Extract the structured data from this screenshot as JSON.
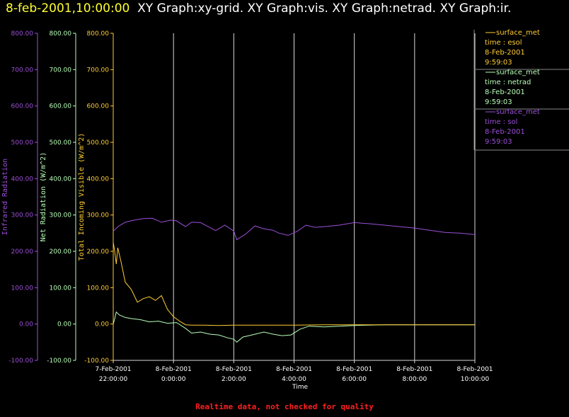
{
  "header": {
    "date_time": "8-feb-2001,10:00:00",
    "graphs": "XY Graph:xy-grid.  XY Graph:vis.  XY Graph:netrad.  XY Graph:ir."
  },
  "footer": {
    "notice": "Realtime data, not checked for quality"
  },
  "colors": {
    "background": "#000000",
    "vis": "#ffcc33",
    "netrad": "#b8ffb8",
    "ir": "#9b4fd8",
    "grid": "#d8d8d8",
    "notice": "#ff2020"
  },
  "chart_data": {
    "type": "line",
    "xlabel": "Time",
    "x_ticks": [
      {
        "line1": "7-Feb-2001",
        "line2": "22:00:00",
        "hour": 22
      },
      {
        "line1": "8-Feb-2001",
        "line2": "0:00:00",
        "hour": 24
      },
      {
        "line1": "8-Feb-2001",
        "line2": "2:00:00",
        "hour": 26
      },
      {
        "line1": "8-Feb-2001",
        "line2": "4:00:00",
        "hour": 28
      },
      {
        "line1": "8-Feb-2001",
        "line2": "6:00:00",
        "hour": 30
      },
      {
        "line1": "8-Feb-2001",
        "line2": "8:00:00",
        "hour": 32
      },
      {
        "line1": "8-Feb-2001",
        "line2": "10:00:00",
        "hour": 34
      }
    ],
    "xlim": [
      22,
      34
    ],
    "ylim": [
      -100,
      800
    ],
    "y_ticks": [
      800,
      700,
      600,
      500,
      400,
      300,
      200,
      100,
      0,
      -100
    ],
    "y_tick_labels": [
      "800.00",
      "700.00",
      "600.00",
      "500.00",
      "400.00",
      "300.00",
      "200.00",
      "100.00",
      "0.00",
      "-100.00"
    ],
    "axes": [
      {
        "id": "ir",
        "label": "Infrared Radiation"
      },
      {
        "id": "netrad",
        "label": "Net Radiation (W/m^2)"
      },
      {
        "id": "vis",
        "label": "Total Incoming Visible (W/m^2)"
      }
    ],
    "legend": [
      {
        "series": "vis",
        "name": "surface_met",
        "field": "time : esol",
        "date": "8-Feb-2001",
        "time": "9:59:03"
      },
      {
        "series": "netrad",
        "name": "surface_met",
        "field": "time : netrad",
        "date": "8-Feb-2001",
        "time": "9:59:03"
      },
      {
        "series": "ir",
        "name": "surface_met",
        "field": "time : sol",
        "date": "8-Feb-2001",
        "time": "9:59:03"
      }
    ],
    "series": [
      {
        "id": "ir",
        "name": "surface_met",
        "x": [
          22.0,
          22.15,
          22.4,
          22.7,
          23.0,
          23.3,
          23.6,
          23.9,
          24.1,
          24.4,
          24.6,
          24.9,
          25.1,
          25.4,
          25.7,
          26.0,
          26.1,
          26.4,
          26.7,
          27.0,
          27.3,
          27.5,
          27.8,
          28.1,
          28.4,
          28.7,
          29.0,
          29.5,
          30.0,
          30.5,
          31.0,
          31.5,
          32.0,
          32.5,
          33.0,
          33.5,
          34.0
        ],
        "y": [
          255,
          268,
          280,
          286,
          290,
          291,
          280,
          286,
          284,
          268,
          280,
          279,
          270,
          257,
          272,
          256,
          232,
          248,
          270,
          262,
          258,
          250,
          244,
          255,
          272,
          266,
          268,
          272,
          279,
          276,
          272,
          268,
          264,
          258,
          252,
          250,
          246
        ]
      },
      {
        "id": "netrad",
        "name": "surface_met",
        "x": [
          22.0,
          22.05,
          22.1,
          22.2,
          22.4,
          22.6,
          22.9,
          23.2,
          23.5,
          23.8,
          24.1,
          24.4,
          24.6,
          24.9,
          25.2,
          25.5,
          25.8,
          26.0,
          26.1,
          26.3,
          26.6,
          27.0,
          27.3,
          27.6,
          27.9,
          28.2,
          28.5,
          29.0,
          29.5,
          30.0,
          31.0,
          32.0,
          33.0,
          34.0
        ],
        "y": [
          0,
          15,
          33,
          25,
          18,
          15,
          12,
          6,
          8,
          2,
          4,
          -12,
          -25,
          -22,
          -28,
          -30,
          -38,
          -42,
          -50,
          -36,
          -30,
          -22,
          -28,
          -32,
          -30,
          -14,
          -6,
          -8,
          -6,
          -4,
          -2,
          -2,
          -2,
          -2
        ]
      },
      {
        "id": "vis",
        "name": "surface_met",
        "x": [
          22.0,
          22.05,
          22.1,
          22.15,
          22.25,
          22.4,
          22.6,
          22.8,
          23.0,
          23.2,
          23.4,
          23.6,
          23.8,
          24.0,
          24.2,
          24.4,
          24.6,
          24.8,
          25.0,
          25.5,
          26.0,
          26.5,
          27.0,
          27.5,
          28.0,
          29.0,
          30.0,
          31.0,
          32.0,
          33.0,
          34.0
        ],
        "y": [
          225,
          200,
          165,
          210,
          175,
          115,
          95,
          60,
          70,
          75,
          65,
          78,
          40,
          20,
          8,
          -2,
          -3,
          -3,
          -3,
          -4,
          -3,
          -3,
          -3,
          -3,
          -3,
          -2,
          -2,
          -2,
          -2,
          -2,
          -2
        ]
      }
    ]
  }
}
